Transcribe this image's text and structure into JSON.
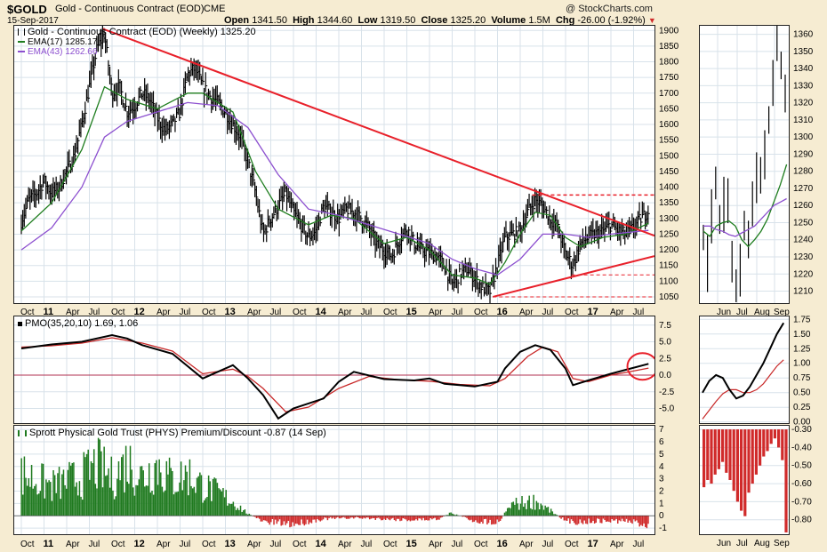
{
  "header": {
    "symbol": "$GOLD",
    "name": "Gold - Continuous Contract (EOD)",
    "exchange": "CME",
    "date": "15-Sep-2017",
    "open_label": "Open",
    "open": "1341.50",
    "high_label": "High",
    "high": "1344.60",
    "low_label": "Low",
    "low": "1319.50",
    "close_label": "Close",
    "close": "1325.20",
    "volume_label": "Volume",
    "volume": "1.5M",
    "chg_label": "Chg",
    "chg": "-26.00 (-1.92%)",
    "watermark": "@ StockCharts.com"
  },
  "colors": {
    "price": "#000000",
    "ema17": "#1e7d1e",
    "ema43": "#8c4fcf",
    "trendline": "#e8202a",
    "pmo_signal": "#c82828",
    "premium_positive": "#1f7a1f",
    "premium_negative": "#d02a2a",
    "background": "#f6ecd2",
    "panel": "#ffffff",
    "grid": "#d8e2ea"
  },
  "chart_data": [
    {
      "type": "line",
      "panel": "main",
      "title": "Gold - Continuous Contract (EOD) (Weekly) 1325.20",
      "legend": [
        {
          "name": "EMA(17) 1285.17",
          "color": "#1e7d1e"
        },
        {
          "name": "EMA(43) 1262.66",
          "color": "#8c4fcf"
        }
      ],
      "x": [
        "Oct",
        "11",
        "Apr",
        "Jul",
        "Oct",
        "12",
        "Apr",
        "Jul",
        "Oct",
        "13",
        "Apr",
        "Jul",
        "Oct",
        "14",
        "Apr",
        "Jul",
        "Oct",
        "15",
        "Apr",
        "Jul",
        "Oct",
        "16",
        "Apr",
        "Jul",
        "Oct",
        "17",
        "Apr",
        "Jul"
      ],
      "y_ticks": [
        1050,
        1100,
        1150,
        1200,
        1250,
        1300,
        1350,
        1400,
        1450,
        1500,
        1550,
        1600,
        1650,
        1700,
        1750,
        1800,
        1850,
        1900
      ],
      "ylim": [
        1030,
        1915
      ],
      "series": [
        {
          "name": "Gold - Continuous Contract (EOD)",
          "values": [
            [
              0,
              1290
            ],
            [
              0.25,
              1360
            ],
            [
              0.5,
              1380
            ],
            [
              0.75,
              1420
            ],
            [
              1,
              1380
            ],
            [
              1.25,
              1400
            ],
            [
              1.5,
              1450
            ],
            [
              1.75,
              1500
            ],
            [
              2,
              1600
            ],
            [
              2.25,
              1720
            ],
            [
              2.5,
              1840
            ],
            [
              2.75,
              1890
            ],
            [
              3,
              1700
            ],
            [
              3.25,
              1720
            ],
            [
              3.5,
              1640
            ],
            [
              3.75,
              1660
            ],
            [
              4,
              1700
            ],
            [
              4.25,
              1680
            ],
            [
              4.5,
              1620
            ],
            [
              4.75,
              1580
            ],
            [
              5,
              1600
            ],
            [
              5.25,
              1640
            ],
            [
              5.5,
              1760
            ],
            [
              5.75,
              1780
            ],
            [
              6,
              1720
            ],
            [
              6.25,
              1690
            ],
            [
              6.5,
              1670
            ],
            [
              6.75,
              1640
            ],
            [
              7,
              1600
            ],
            [
              7.25,
              1560
            ],
            [
              7.5,
              1480
            ],
            [
              7.75,
              1380
            ],
            [
              8,
              1250
            ],
            [
              8.25,
              1300
            ],
            [
              8.5,
              1340
            ],
            [
              8.75,
              1380
            ],
            [
              9,
              1320
            ],
            [
              9.25,
              1280
            ],
            [
              9.5,
              1240
            ],
            [
              9.75,
              1260
            ],
            [
              10,
              1340
            ],
            [
              10.25,
              1320
            ],
            [
              10.5,
              1300
            ],
            [
              10.75,
              1330
            ],
            [
              11,
              1320
            ],
            [
              11.25,
              1300
            ],
            [
              11.5,
              1270
            ],
            [
              11.75,
              1220
            ],
            [
              12,
              1200
            ],
            [
              12.25,
              1180
            ],
            [
              12.5,
              1230
            ],
            [
              12.75,
              1270
            ],
            [
              13,
              1220
            ],
            [
              13.25,
              1200
            ],
            [
              13.5,
              1190
            ],
            [
              13.75,
              1180
            ],
            [
              14,
              1150
            ],
            [
              14.25,
              1090
            ],
            [
              14.5,
              1120
            ],
            [
              14.75,
              1140
            ],
            [
              15,
              1110
            ],
            [
              15.25,
              1080
            ],
            [
              15.5,
              1065
            ],
            [
              15.75,
              1150
            ],
            [
              16,
              1240
            ],
            [
              16.25,
              1250
            ],
            [
              16.5,
              1260
            ],
            [
              16.75,
              1320
            ],
            [
              17,
              1360
            ],
            [
              17.25,
              1340
            ],
            [
              17.5,
              1300
            ],
            [
              17.75,
              1270
            ],
            [
              18,
              1190
            ],
            [
              18.25,
              1150
            ],
            [
              18.5,
              1220
            ],
            [
              18.75,
              1240
            ],
            [
              19,
              1250
            ],
            [
              19.25,
              1260
            ],
            [
              19.5,
              1280
            ],
            [
              19.75,
              1260
            ],
            [
              20,
              1250
            ],
            [
              20.25,
              1270
            ],
            [
              20.5,
              1300
            ],
            [
              20.75,
              1325
            ]
          ]
        },
        {
          "name": "EMA(17)",
          "values": [
            [
              0,
              1260
            ],
            [
              1,
              1350
            ],
            [
              2,
              1520
            ],
            [
              2.75,
              1720
            ],
            [
              3.5,
              1680
            ],
            [
              4.5,
              1650
            ],
            [
              5.5,
              1700
            ],
            [
              6,
              1700
            ],
            [
              7,
              1640
            ],
            [
              7.75,
              1450
            ],
            [
              8.5,
              1330
            ],
            [
              9.5,
              1280
            ],
            [
              10.25,
              1310
            ],
            [
              11,
              1300
            ],
            [
              12,
              1220
            ],
            [
              12.75,
              1240
            ],
            [
              13.5,
              1200
            ],
            [
              14.25,
              1120
            ],
            [
              15,
              1110
            ],
            [
              15.5,
              1090
            ],
            [
              16,
              1160
            ],
            [
              16.5,
              1250
            ],
            [
              17,
              1320
            ],
            [
              17.5,
              1310
            ],
            [
              18,
              1240
            ],
            [
              18.5,
              1210
            ],
            [
              19.25,
              1240
            ],
            [
              20,
              1250
            ],
            [
              20.75,
              1285
            ]
          ]
        },
        {
          "name": "EMA(43)",
          "values": [
            [
              0,
              1200
            ],
            [
              1,
              1270
            ],
            [
              2,
              1400
            ],
            [
              2.75,
              1560
            ],
            [
              3.5,
              1610
            ],
            [
              4.5,
              1640
            ],
            [
              5.5,
              1670
            ],
            [
              6.5,
              1660
            ],
            [
              7.5,
              1590
            ],
            [
              8.5,
              1440
            ],
            [
              9.5,
              1330
            ],
            [
              10.5,
              1310
            ],
            [
              11.5,
              1280
            ],
            [
              12.5,
              1250
            ],
            [
              13.5,
              1220
            ],
            [
              14.25,
              1170
            ],
            [
              15,
              1140
            ],
            [
              15.75,
              1120
            ],
            [
              16.5,
              1170
            ],
            [
              17.25,
              1250
            ],
            [
              18,
              1250
            ],
            [
              18.75,
              1240
            ],
            [
              19.5,
              1250
            ],
            [
              20.75,
              1262
            ]
          ]
        }
      ],
      "annotations": [
        "Descending trendline from the 2011 high to the Jul 2017 breakout",
        "Rising trendline from the Dec 2015 low",
        "Horizontal resistance near 1375",
        "Horizontal support near 1120 and 1050"
      ]
    },
    {
      "type": "line",
      "panel": "main-zoom",
      "x": [
        "Jun",
        "Jul",
        "Aug",
        "Sep"
      ],
      "y_ticks": [
        1210,
        1220,
        1230,
        1240,
        1250,
        1260,
        1270,
        1280,
        1290,
        1300,
        1310,
        1320,
        1330,
        1340,
        1350,
        1360
      ],
      "ylim": [
        1203,
        1365
      ]
    },
    {
      "type": "line",
      "panel": "pmo",
      "title": "PMO(35,20,10) 1.69, 1.06",
      "y_ticks": [
        -5.0,
        -2.5,
        0.0,
        2.5,
        5.0,
        7.5
      ],
      "ylim": [
        -7.2,
        8.8
      ],
      "series": [
        {
          "name": "PMO",
          "values": [
            [
              0,
              4.0
            ],
            [
              1,
              4.6
            ],
            [
              2,
              5.0
            ],
            [
              3,
              6.0
            ],
            [
              3.5,
              5.5
            ],
            [
              4,
              4.5
            ],
            [
              5,
              3.2
            ],
            [
              6,
              -0.5
            ],
            [
              6.5,
              0.5
            ],
            [
              7,
              1.5
            ],
            [
              7.5,
              -0.5
            ],
            [
              8,
              -3
            ],
            [
              8.5,
              -6.5
            ],
            [
              9,
              -5
            ],
            [
              10,
              -3.5
            ],
            [
              10.5,
              -1
            ],
            [
              11,
              0.5
            ],
            [
              12,
              -0.6
            ],
            [
              13,
              -0.8
            ],
            [
              13.5,
              -0.5
            ],
            [
              14,
              -1.3
            ],
            [
              14.5,
              -1.5
            ],
            [
              15,
              -1.7
            ],
            [
              15.75,
              -1.0
            ],
            [
              16,
              1.0
            ],
            [
              16.5,
              3.5
            ],
            [
              17,
              4.5
            ],
            [
              17.5,
              3.8
            ],
            [
              18,
              1.0
            ],
            [
              18.25,
              -1.5
            ],
            [
              18.75,
              -0.8
            ],
            [
              19.5,
              0.2
            ],
            [
              20,
              0.8
            ],
            [
              20.75,
              1.69
            ]
          ]
        },
        {
          "name": "Signal",
          "values": [
            [
              0,
              4.2
            ],
            [
              1,
              4.4
            ],
            [
              2,
              4.8
            ],
            [
              3,
              5.6
            ],
            [
              4,
              4.8
            ],
            [
              5,
              3.6
            ],
            [
              6,
              0.2
            ],
            [
              7,
              0.9
            ],
            [
              7.5,
              -0.2
            ],
            [
              8,
              -2.0
            ],
            [
              8.75,
              -5.5
            ],
            [
              9.5,
              -4.8
            ],
            [
              10.5,
              -2.0
            ],
            [
              11.5,
              -0.2
            ],
            [
              12.5,
              -0.7
            ],
            [
              13.5,
              -0.9
            ],
            [
              14.5,
              -1.4
            ],
            [
              15.5,
              -1.6
            ],
            [
              16,
              -0.5
            ],
            [
              16.75,
              2.8
            ],
            [
              17.25,
              4.2
            ],
            [
              17.75,
              3.5
            ],
            [
              18.25,
              -0.5
            ],
            [
              18.75,
              -1.0
            ],
            [
              19.5,
              0.0
            ],
            [
              20,
              0.4
            ],
            [
              20.75,
              1.06
            ]
          ]
        }
      ],
      "annotations": [
        "Circle around latest PMO crossover"
      ]
    },
    {
      "type": "line",
      "panel": "pmo-zoom",
      "y_ticks": [
        0.0,
        0.25,
        0.5,
        0.75,
        1.0,
        1.25,
        1.5,
        1.75
      ],
      "ylim": [
        -0.02,
        1.8
      ]
    },
    {
      "type": "bar",
      "panel": "premium",
      "title": "Sprott Physical Gold Trust (PHYS) Premium/Discount -0.87 (14 Sep)",
      "y_ticks": [
        -1,
        0,
        1,
        2,
        3,
        4,
        5,
        6,
        7
      ],
      "ylim": [
        -1.5,
        7.3
      ]
    },
    {
      "type": "bar",
      "panel": "premium-zoom",
      "x": [
        "Jun",
        "Jul",
        "Aug",
        "Sep"
      ],
      "y_ticks": [
        -0.3,
        -0.4,
        -0.5,
        -0.6,
        -0.7,
        -0.8
      ],
      "ylim": [
        -0.88,
        -0.28
      ]
    }
  ]
}
